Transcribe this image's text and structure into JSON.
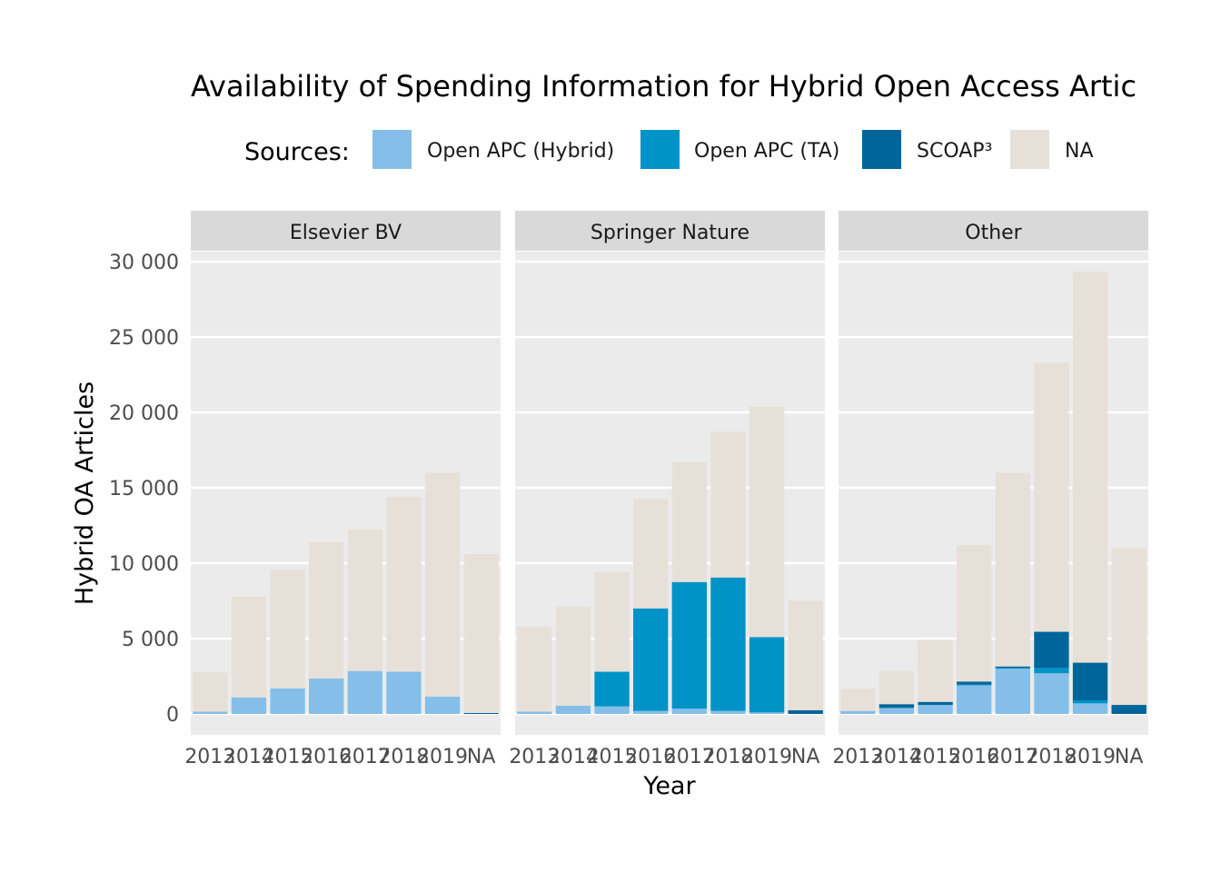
{
  "chart_data": {
    "type": "bar",
    "stacked": true,
    "title": "Availability of Spending Information for Hybrid Open Access Artic",
    "xlabel": "Year",
    "ylabel": "Hybrid OA Articles",
    "ylim": [
      -1400,
      30000
    ],
    "yticks": [
      0,
      5000,
      10000,
      15000,
      20000,
      25000,
      30000
    ],
    "ytick_labels": [
      "0",
      "5 000",
      "10 000",
      "15 000",
      "20 000",
      "25 000",
      "30 000"
    ],
    "categories": [
      "2013",
      "2014",
      "2015",
      "2016",
      "2017",
      "2018",
      "2019",
      "NA"
    ],
    "grid": true,
    "legend": {
      "position": "top",
      "title": "Sources:",
      "entries": [
        {
          "name": "Open APC (Hybrid)",
          "color": "#85bfe9"
        },
        {
          "name": "Open APC (TA)",
          "color": "#0093c7"
        },
        {
          "name": "SCOAP³",
          "color": "#00659a"
        },
        {
          "name": "NA",
          "color": "#e7e0d8"
        }
      ]
    },
    "panels": [
      {
        "name": "Elsevier BV",
        "series": [
          {
            "name": "Open APC (Hybrid)",
            "values": [
              150,
              1100,
              1700,
              2350,
              2850,
              2800,
              1150,
              0
            ]
          },
          {
            "name": "Open APC (TA)",
            "values": [
              0,
              0,
              0,
              0,
              0,
              0,
              0,
              0
            ]
          },
          {
            "name": "SCOAP³",
            "values": [
              0,
              0,
              0,
              0,
              0,
              0,
              0,
              60
            ]
          },
          {
            "name": "NA",
            "values": [
              2600,
              6700,
              7850,
              9050,
              9400,
              11600,
              14850,
              10540
            ]
          }
        ]
      },
      {
        "name": "Springer Nature",
        "series": [
          {
            "name": "Open APC (Hybrid)",
            "values": [
              150,
              550,
              500,
              200,
              350,
              200,
              100,
              0
            ]
          },
          {
            "name": "Open APC (TA)",
            "values": [
              0,
              0,
              2300,
              6800,
              8400,
              8850,
              5000,
              0
            ]
          },
          {
            "name": "SCOAP³",
            "values": [
              0,
              0,
              0,
              0,
              0,
              0,
              0,
              250
            ]
          },
          {
            "name": "NA",
            "values": [
              5650,
              6550,
              6600,
              7250,
              7950,
              9650,
              15300,
              7250
            ]
          }
        ]
      },
      {
        "name": "Other",
        "series": [
          {
            "name": "Open APC (Hybrid)",
            "values": [
              200,
              400,
              600,
              1900,
              3000,
              2700,
              700,
              0
            ]
          },
          {
            "name": "Open APC (TA)",
            "values": [
              0,
              0,
              0,
              50,
              50,
              350,
              200,
              0
            ]
          },
          {
            "name": "SCOAP³",
            "values": [
              0,
              250,
              200,
              200,
              100,
              2400,
              2500,
              600
            ]
          },
          {
            "name": "NA",
            "values": [
              1450,
              2200,
              4100,
              9050,
              12850,
              17850,
              25900,
              10400
            ]
          }
        ]
      }
    ]
  }
}
